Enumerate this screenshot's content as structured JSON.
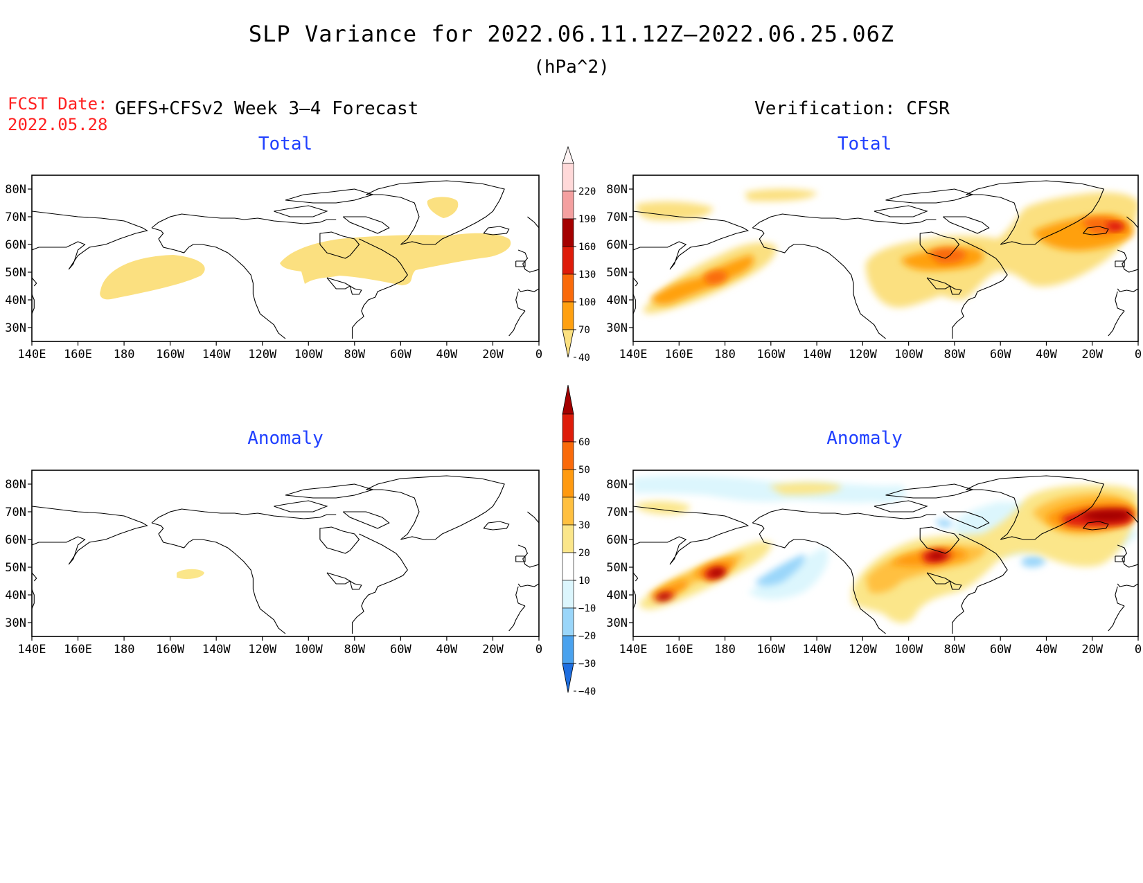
{
  "header": {
    "title": "SLP Variance for 2022.06.11.12Z–2022.06.25.06Z",
    "units": "(hPa^2)",
    "fcst_label": "FCST Date:",
    "fcst_date": "2022.05.28",
    "model_label": "GEFS+CFSv2 Week 3–4 Forecast",
    "verification_label": "Verification: CFSR"
  },
  "panels": {
    "forecast_total_title": "Total",
    "verification_total_title": "Total",
    "forecast_anomaly_title": "Anomaly",
    "verification_anomaly_title": "Anomaly"
  },
  "axes": {
    "lat_labels": [
      "80N",
      "70N",
      "60N",
      "50N",
      "40N",
      "30N"
    ],
    "lat_values": [
      80,
      70,
      60,
      50,
      40,
      30
    ],
    "lon_labels": [
      "140E",
      "160E",
      "180",
      "160W",
      "140W",
      "120W",
      "100W",
      "80W",
      "60W",
      "40W",
      "20W",
      "0"
    ],
    "lon_values": [
      140,
      160,
      180,
      200,
      220,
      240,
      260,
      280,
      300,
      320,
      340,
      360
    ],
    "lon_range": [
      140,
      360
    ],
    "lat_range": [
      25,
      85
    ]
  },
  "colorbars": {
    "total": {
      "labels": [
        "220",
        "190",
        "160",
        "130",
        "100",
        "70",
        "40"
      ],
      "colors": [
        "#fff4f4",
        "#ffd9d9",
        "#f4a0a0",
        "#a40000",
        "#de1c0a",
        "#fa6a0a",
        "#ffa010",
        "#fbe080"
      ]
    },
    "anomaly": {
      "labels": [
        "60",
        "50",
        "40",
        "30",
        "20",
        "10",
        "−10",
        "−20",
        "−30",
        "−40"
      ],
      "colors": [
        "#a40000",
        "#de1c0a",
        "#fa6a0a",
        "#ff9a10",
        "#ffc040",
        "#fbe68a",
        "#ffffff",
        "#dcf6fd",
        "#9ad6fa",
        "#4aa2ee",
        "#1e6ee0"
      ]
    }
  },
  "colors": {
    "total_40": "#fbe080",
    "total_70": "#ffa010",
    "total_100": "#fa6a0a",
    "total_130": "#de1c0a",
    "total_160": "#a40000",
    "anom_pos_10": "#fbe68a",
    "anom_pos_20": "#ffc040",
    "anom_pos_30": "#ff9a10",
    "anom_pos_40": "#fa6a0a",
    "anom_pos_50": "#de1c0a",
    "anom_pos_60": "#a40000",
    "anom_neg_10": "#dcf6fd",
    "anom_neg_20": "#9ad6fa",
    "title_blue": "#2040ff",
    "fcst_red": "#ff2020"
  }
}
